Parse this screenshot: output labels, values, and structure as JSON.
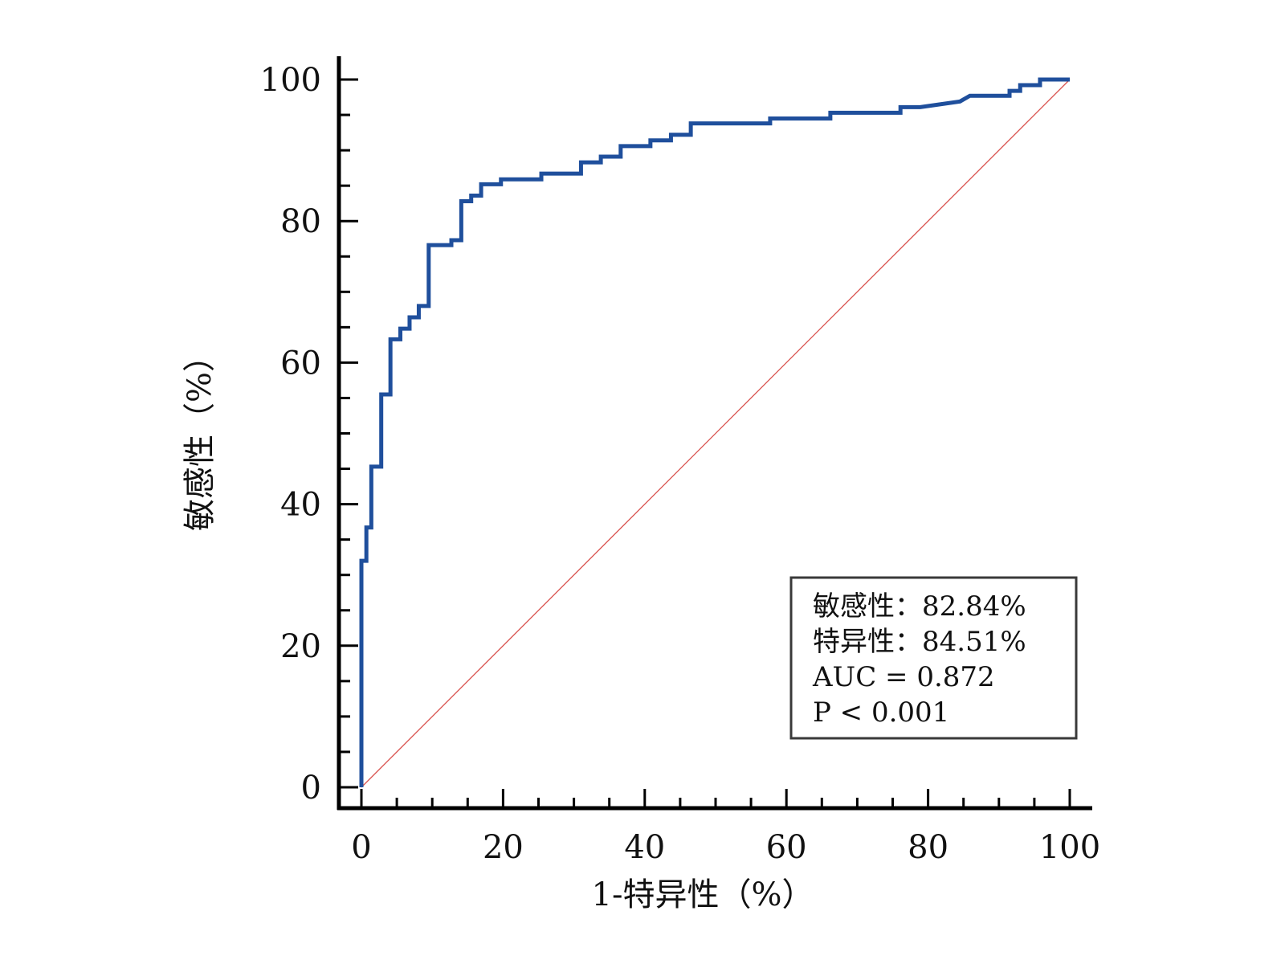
{
  "chart_data": {
    "type": "line",
    "title": "",
    "xlabel": "1-特异性（%）",
    "ylabel": "敏感性（%）",
    "xlim": [
      0,
      100
    ],
    "ylim": [
      0,
      100
    ],
    "x_ticks": [
      "0",
      "20",
      "40",
      "60",
      "80",
      "100"
    ],
    "y_ticks": [
      "0",
      "20",
      "40",
      "60",
      "80",
      "100"
    ],
    "grid": false,
    "series": [
      {
        "color": "#1f4f9c",
        "x": [
          0,
          0,
          0.7,
          0.7,
          1.4,
          1.4,
          2.8,
          2.8,
          4.1,
          4.1,
          5.5,
          5.5,
          6.8,
          6.8,
          8.1,
          8.1,
          9.5,
          9.5,
          12.7,
          12.7,
          14.1,
          14.1,
          15.5,
          15.5,
          16.9,
          16.9,
          19.7,
          19.7,
          25.4,
          25.4,
          31.0,
          31.0,
          33.8,
          33.8,
          36.6,
          36.6,
          40.8,
          40.8,
          43.7,
          43.7,
          46.5,
          46.5,
          57.7,
          57.7,
          66.2,
          66.2,
          76.1,
          76.1,
          78.9,
          78.9,
          84.5,
          85.9,
          91.5,
          91.5,
          93.0,
          93.0,
          95.8,
          95.8,
          100
        ],
        "y": [
          0,
          32.0,
          32.0,
          36.7,
          36.7,
          45.3,
          45.3,
          55.5,
          55.5,
          63.3,
          63.3,
          64.8,
          64.8,
          66.4,
          66.4,
          68.0,
          68.0,
          76.6,
          76.6,
          77.3,
          77.3,
          82.8,
          82.8,
          83.6,
          83.6,
          85.2,
          85.2,
          85.9,
          85.9,
          86.7,
          86.7,
          88.3,
          88.3,
          89.1,
          89.1,
          90.6,
          90.6,
          91.4,
          91.4,
          92.2,
          92.2,
          93.8,
          93.8,
          94.5,
          94.5,
          95.3,
          95.3,
          96.1,
          96.1,
          96.1,
          96.9,
          97.7,
          97.7,
          98.4,
          98.4,
          99.2,
          99.2,
          100,
          100
        ]
      },
      {
        "color": "#d9534f",
        "style": "diagonal reference",
        "x": [
          0,
          100
        ],
        "y": [
          0,
          100
        ]
      }
    ],
    "annotation": {
      "lines": [
        "敏感性：82.84%",
        "特异性：84.51%",
        "AUC = 0.872",
        "P < 0.001"
      ],
      "placement": "bottom-right"
    }
  }
}
